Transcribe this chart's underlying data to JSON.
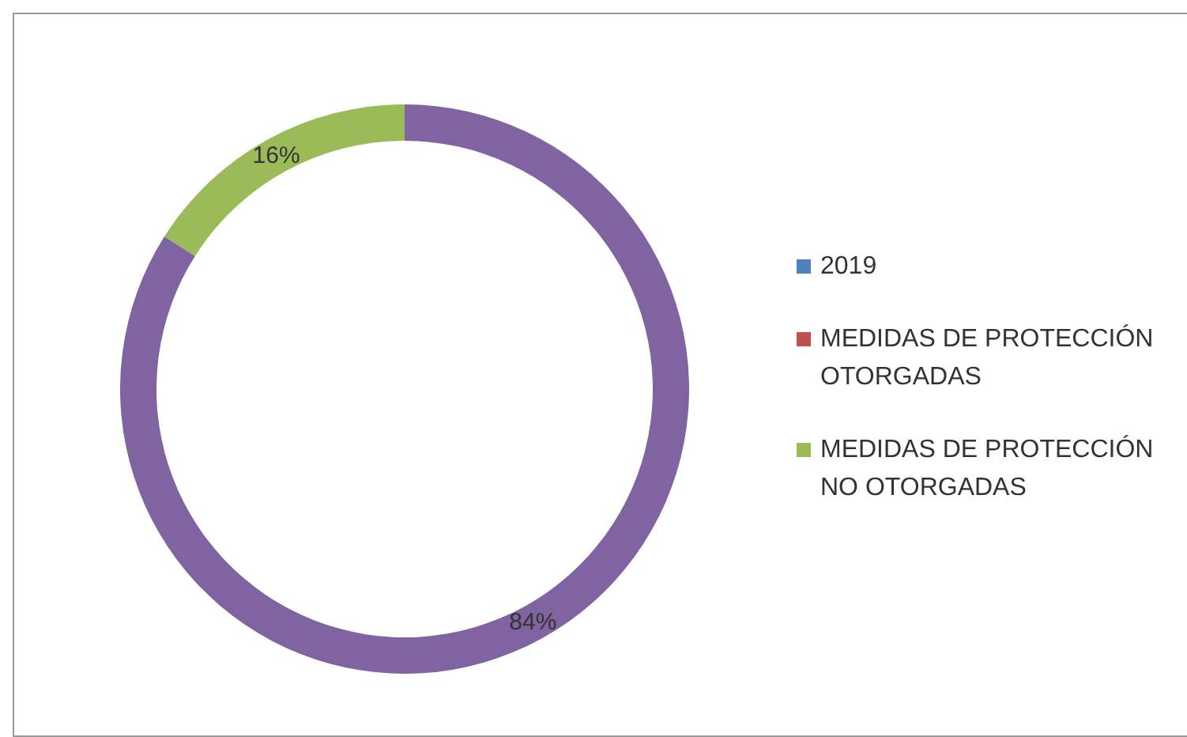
{
  "chart_data": {
    "type": "donut",
    "categories": [
      null,
      "2019",
      "MEDIDAS DE PROTECCIÓN OTORGADAS",
      "MEDIDAS DE PROTECCIÓN NO OTORGADAS"
    ],
    "values": [
      84,
      0,
      0,
      16
    ],
    "colors": [
      "#8064a2",
      "#4f81bd",
      "#c0504d",
      "#9bbb59"
    ],
    "value_labels": [
      "84%",
      null,
      null,
      "16%"
    ],
    "legend": "right"
  }
}
